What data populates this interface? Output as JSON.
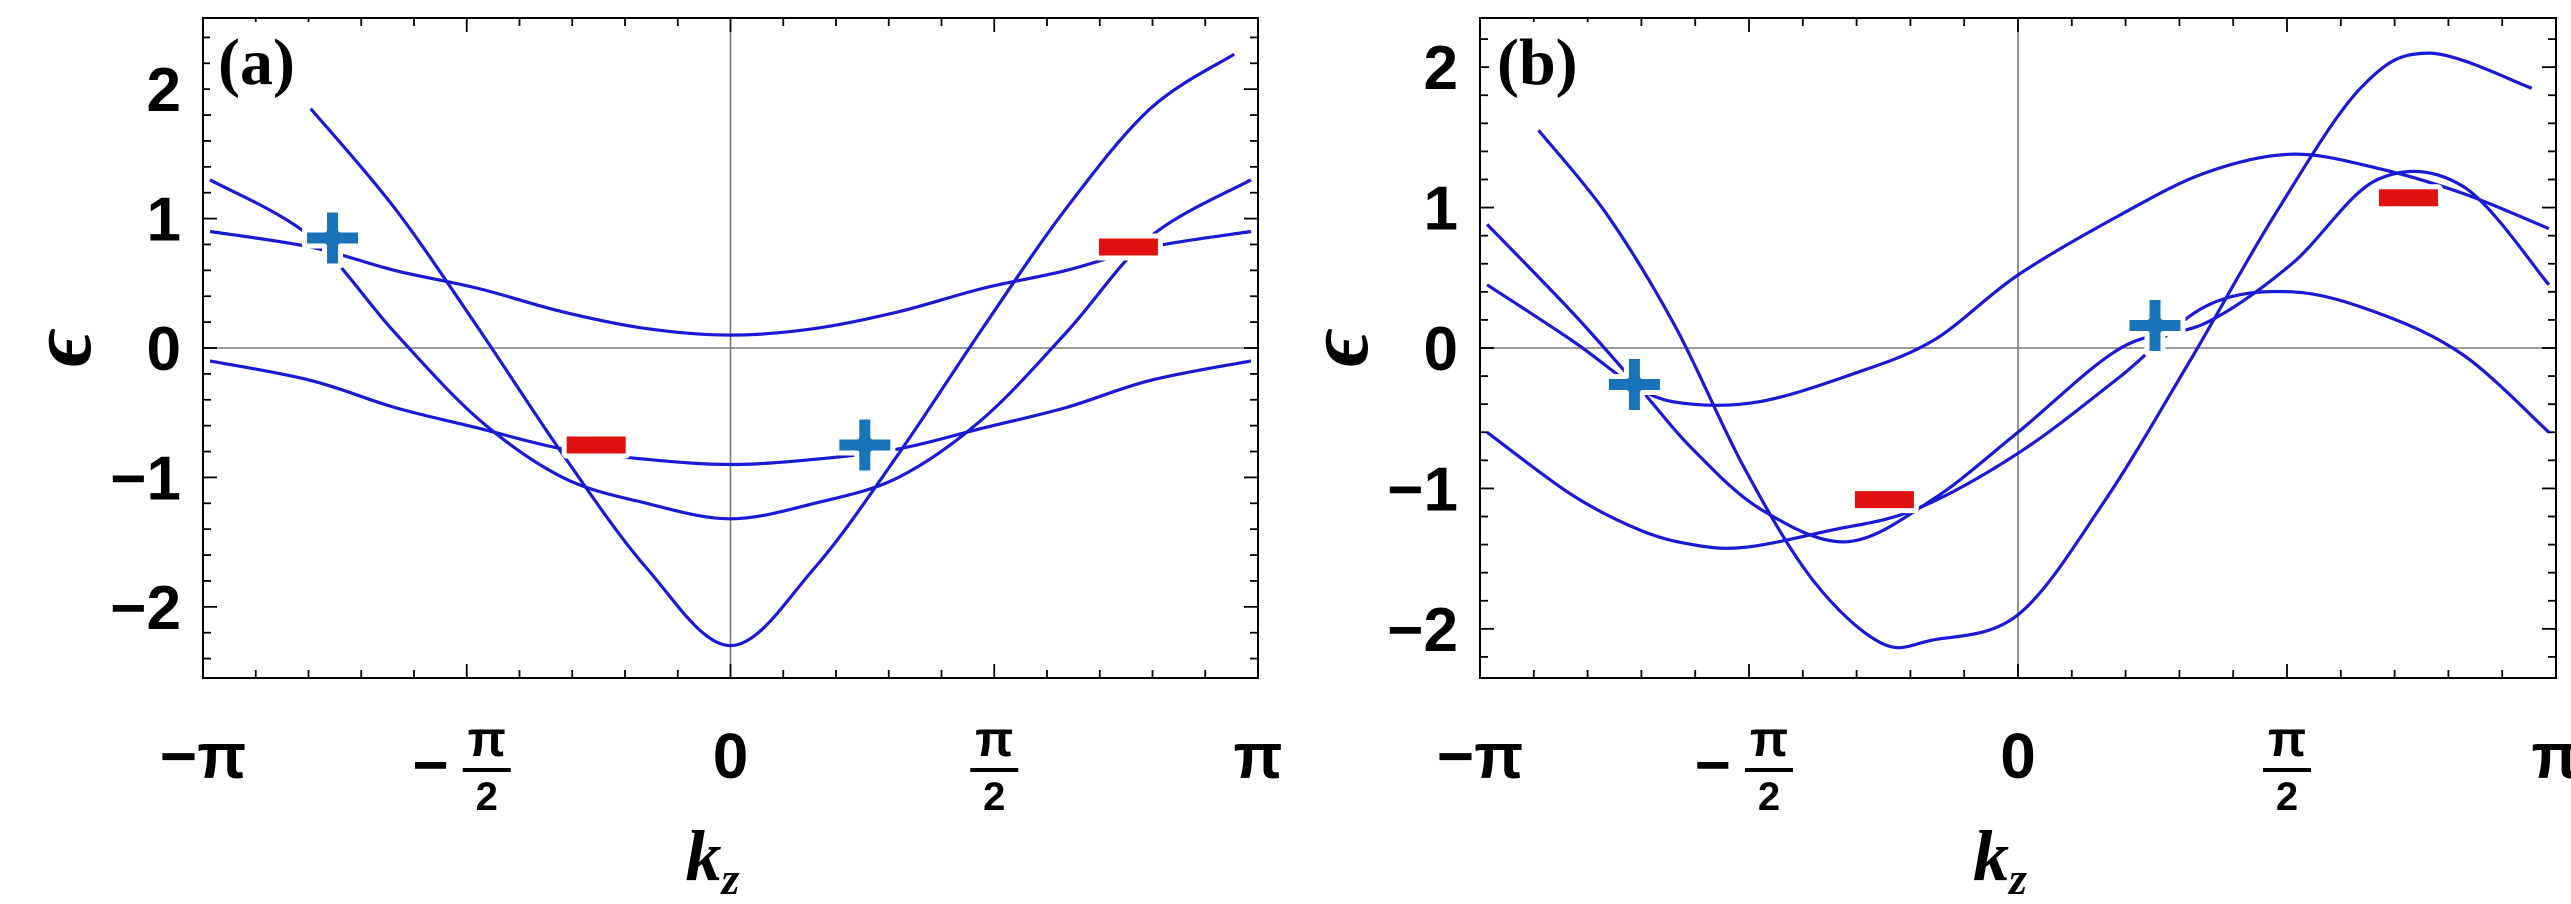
{
  "chart_data": [
    {
      "type": "line",
      "panel_label": "(a)",
      "xlabel": "k",
      "xlabel_sub": "z",
      "ylabel": "ϵ",
      "xlim": [
        -3.14159,
        3.14159
      ],
      "ylim": [
        -2.55,
        2.55
      ],
      "x_ticks": [
        {
          "value": -3.14159,
          "label": "−π"
        },
        {
          "value": -1.5708,
          "label": "−",
          "num": "π",
          "den": "2"
        },
        {
          "value": 0,
          "label": "0"
        },
        {
          "value": 1.5708,
          "label": "",
          "num": "π",
          "den": "2"
        },
        {
          "value": 3.14159,
          "label": "π"
        }
      ],
      "y_ticks": [
        {
          "value": 2,
          "label": "2"
        },
        {
          "value": 1,
          "label": "1"
        },
        {
          "value": 0,
          "label": "0"
        },
        {
          "value": -1,
          "label": "−1"
        },
        {
          "value": -2,
          "label": "−2"
        }
      ],
      "grid": "zero lines only",
      "line_color": "#1a1ad6",
      "series": [
        {
          "x": [
            -2.5,
            -2.0,
            -1.5,
            -1.0,
            -0.5,
            0.0,
            0.5,
            1.0,
            1.5,
            2.0,
            2.5,
            3.0
          ],
          "values": [
            1.85,
            1.08,
            0.15,
            -0.82,
            -1.7,
            -2.3,
            -1.7,
            -0.82,
            0.15,
            1.08,
            1.85,
            2.27
          ]
        },
        {
          "x": [
            -3.1,
            -2.5,
            -2.0,
            -1.5,
            -1.0,
            -0.5,
            0.0,
            0.5,
            1.0,
            1.5,
            2.0,
            2.5,
            3.1
          ],
          "values": [
            1.3,
            0.86,
            0.12,
            -0.55,
            -1.0,
            -1.2,
            -1.32,
            -1.2,
            -1.0,
            -0.55,
            0.12,
            0.86,
            1.3
          ]
        },
        {
          "x": [
            -3.1,
            -2.5,
            -2.0,
            -1.5,
            -1.0,
            -0.5,
            0.0,
            0.5,
            1.0,
            1.5,
            2.0,
            2.5,
            3.1
          ],
          "values": [
            0.9,
            0.78,
            0.6,
            0.46,
            0.28,
            0.15,
            0.1,
            0.15,
            0.28,
            0.46,
            0.6,
            0.78,
            0.9
          ]
        },
        {
          "x": [
            -3.1,
            -2.5,
            -2.0,
            -1.5,
            -1.0,
            -0.5,
            0.0,
            0.5,
            1.0,
            1.5,
            2.0,
            2.5,
            3.1
          ],
          "values": [
            -0.1,
            -0.25,
            -0.46,
            -0.62,
            -0.78,
            -0.86,
            -0.9,
            -0.86,
            -0.78,
            -0.62,
            -0.46,
            -0.25,
            -0.1
          ]
        }
      ],
      "markers": [
        {
          "sign": "+",
          "x": -2.37,
          "y": 0.85
        },
        {
          "sign": "−",
          "x": -0.8,
          "y": -0.75
        },
        {
          "sign": "+",
          "x": 0.8,
          "y": -0.75
        },
        {
          "sign": "−",
          "x": 2.37,
          "y": 0.78
        }
      ]
    },
    {
      "type": "line",
      "panel_label": "(b)",
      "xlabel": "k",
      "xlabel_sub": "z",
      "ylabel": "ϵ",
      "xlim": [
        -3.14159,
        3.14159
      ],
      "ylim": [
        -2.35,
        2.35
      ],
      "x_ticks": [
        {
          "value": -3.14159,
          "label": "−π"
        },
        {
          "value": -1.5708,
          "label": "−",
          "num": "π",
          "den": "2"
        },
        {
          "value": 0,
          "label": "0"
        },
        {
          "value": 1.5708,
          "label": "",
          "num": "π",
          "den": "2"
        },
        {
          "value": 3.14159,
          "label": "π"
        }
      ],
      "y_ticks": [
        {
          "value": 2,
          "label": "2"
        },
        {
          "value": 1,
          "label": "1"
        },
        {
          "value": 0,
          "label": "0"
        },
        {
          "value": -1,
          "label": "−1"
        },
        {
          "value": -2,
          "label": "−2"
        }
      ],
      "grid": "zero lines only",
      "line_color": "#1a1ad6",
      "series": [
        {
          "x": [
            -3.1,
            -2.6,
            -2.2,
            -1.9,
            -1.6,
            -1.1,
            -0.6,
            0.0,
            0.6,
            1.1,
            1.6,
            2.1,
            2.6,
            3.1
          ],
          "values": [
            -0.6,
            -1.05,
            -1.3,
            -1.4,
            -1.42,
            -1.3,
            -1.15,
            -0.75,
            -0.2,
            0.3,
            0.4,
            0.25,
            -0.05,
            -0.6
          ]
        },
        {
          "x": [
            -3.1,
            -2.6,
            -2.2,
            -1.9,
            -1.5,
            -1.0,
            -0.5,
            0.0,
            0.6,
            1.1,
            1.6,
            2.1,
            2.6,
            3.1
          ],
          "values": [
            0.45,
            0.05,
            -0.3,
            -0.4,
            -0.38,
            -0.2,
            0.05,
            0.52,
            0.95,
            1.25,
            1.38,
            1.28,
            1.1,
            0.85
          ]
        },
        {
          "x": [
            -3.1,
            -2.6,
            -2.2,
            -1.9,
            -1.5,
            -1.0,
            -0.5,
            0.0,
            0.6,
            1.1,
            1.6,
            2.1,
            2.6,
            3.1
          ],
          "values": [
            0.88,
            0.25,
            -0.3,
            -0.72,
            -1.15,
            -1.38,
            -1.08,
            -0.6,
            0.0,
            0.18,
            0.6,
            1.2,
            1.15,
            0.45
          ]
        },
        {
          "x": [
            -2.8,
            -2.4,
            -2.0,
            -1.6,
            -1.2,
            -0.8,
            -0.5,
            0.0,
            0.5,
            1.0,
            1.5,
            2.0,
            2.4,
            3.0
          ],
          "values": [
            1.55,
            0.95,
            0.15,
            -0.85,
            -1.65,
            -2.1,
            -2.08,
            -1.9,
            -1.1,
            -0.1,
            0.95,
            1.85,
            2.1,
            1.85
          ]
        }
      ],
      "markers": [
        {
          "sign": "+",
          "x": -2.24,
          "y": -0.26
        },
        {
          "sign": "−",
          "x": -0.78,
          "y": -1.08
        },
        {
          "sign": "+",
          "x": 0.8,
          "y": 0.16
        },
        {
          "sign": "−",
          "x": 2.28,
          "y": 1.07
        }
      ]
    }
  ]
}
